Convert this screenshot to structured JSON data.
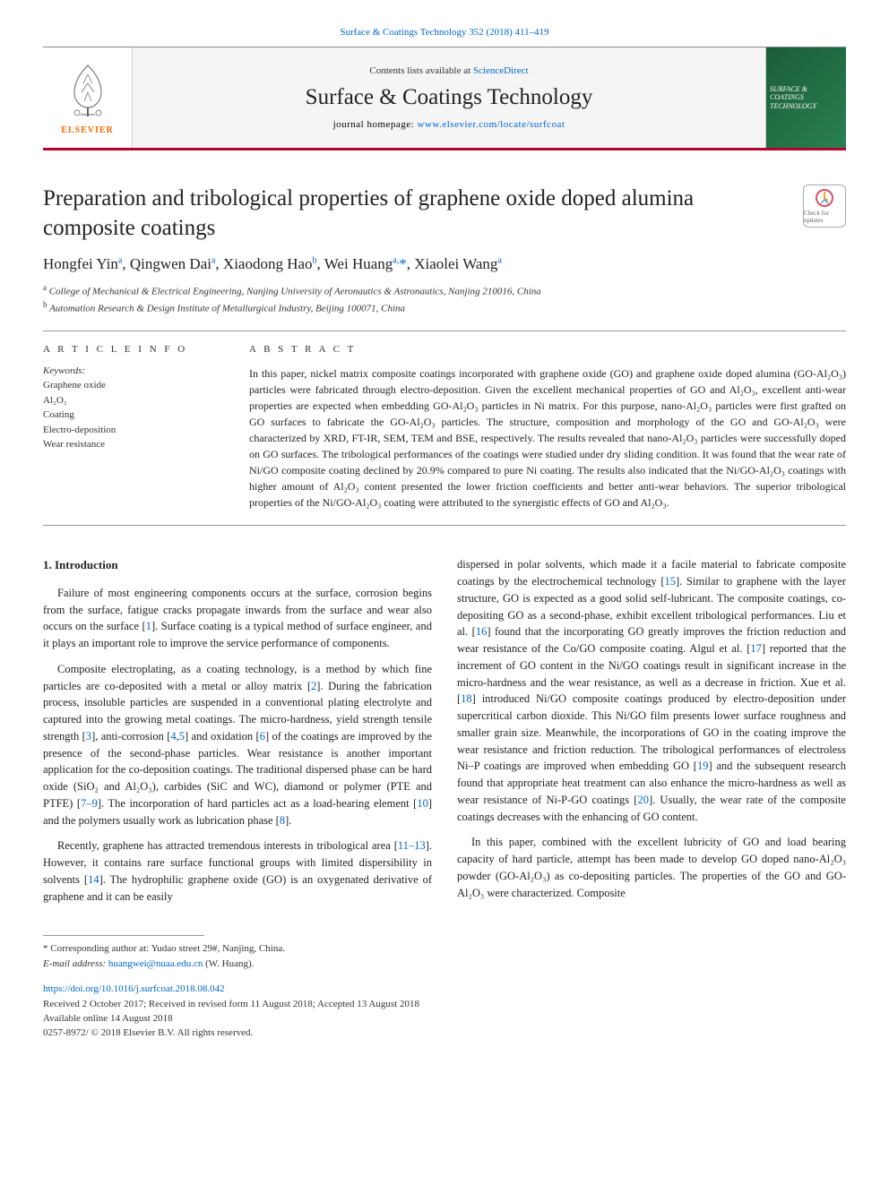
{
  "top_link": {
    "text": "Surface & Coatings Technology 352 (2018) 411–419",
    "href": "#"
  },
  "header": {
    "contents_prefix": "Contents lists available at ",
    "contents_link_text": "ScienceDirect",
    "journal_title": "Surface & Coatings Technology",
    "homepage_prefix": "journal homepage: ",
    "homepage_link_text": "www.elsevier.com/locate/surfcoat",
    "elsevier_label": "ELSEVIER",
    "cover_text": "SURFACE & COATINGS TECHNOLOGY"
  },
  "article": {
    "title": "Preparation and tribological properties of graphene oxide doped alumina composite coatings",
    "check_updates_label": "Check for updates",
    "authors_html": "Hongfei Yin<sup>a</sup>, Qingwen Dai<sup>a</sup>, Xiaodong Hao<sup>b</sup>, Wei Huang<sup>a,</sup><span class='corr'>*</span>, Xiaolei Wang<sup>a</sup>",
    "affiliations": [
      {
        "sup": "a",
        "text": "College of Mechanical & Electrical Engineering, Nanjing University of Aeronautics & Astronautics, Nanjing 210016, China"
      },
      {
        "sup": "b",
        "text": "Automation Research & Design Institute of Metallurgical Industry, Beijing 100071, China"
      }
    ]
  },
  "article_info": {
    "heading": "A R T I C L E  I N F O",
    "keywords_label": "Keywords:",
    "keywords": [
      "Graphene oxide",
      "Al₂O₃",
      "Coating",
      "Electro-deposition",
      "Wear resistance"
    ]
  },
  "abstract": {
    "heading": "A B S T R A C T",
    "text": "In this paper, nickel matrix composite coatings incorporated with graphene oxide (GO) and graphene oxide doped alumina (GO-Al₂O₃) particles were fabricated through electro-deposition. Given the excellent mechanical properties of GO and Al₂O₃, excellent anti-wear properties are expected when embedding GO-Al₂O₃ particles in Ni matrix. For this purpose, nano-Al₂O₃ particles were first grafted on GO surfaces to fabricate the GO-Al₂O₃ particles. The structure, composition and morphology of the GO and GO-Al₂O₃ were characterized by XRD, FT-IR, SEM, TEM and BSE, respectively. The results revealed that nano-Al₂O₃ particles were successfully doped on GO surfaces. The tribological performances of the coatings were studied under dry sliding condition. It was found that the wear rate of Ni/GO composite coating declined by 20.9% compared to pure Ni coating. The results also indicated that the Ni/GO-Al₂O₃ coatings with higher amount of Al₂O₃ content presented the lower friction coefficients and better anti-wear behaviors. The superior tribological properties of the Ni/GO-Al₂O₃ coating were attributed to the synergistic effects of GO and Al₂O₃."
  },
  "body": {
    "intro_heading": "1. Introduction",
    "col1": [
      "Failure of most engineering components occurs at the surface, corrosion begins from the surface, fatigue cracks propagate inwards from the surface and wear also occurs on the surface [<span class='ref'>1</span>]. Surface coating is a typical method of surface engineer, and it plays an important role to improve the service performance of components.",
      "Composite electroplating, as a coating technology, is a method by which fine particles are co-deposited with a metal or alloy matrix [<span class='ref'>2</span>]. During the fabrication process, insoluble particles are suspended in a conventional plating electrolyte and captured into the growing metal coatings. The micro-hardness, yield strength tensile strength [<span class='ref'>3</span>], anti-corrosion [<span class='ref'>4</span>,<span class='ref'>5</span>] and oxidation [<span class='ref'>6</span>] of the coatings are improved by the presence of the second-phase particles. Wear resistance is another important application for the co-deposition coatings. The traditional dispersed phase can be hard oxide (SiO₂ and Al₂O₃), carbides (SiC and WC), diamond or polymer (PTE and PTFE) [<span class='ref'>7–9</span>]. The incorporation of hard particles act as a load-bearing element [<span class='ref'>10</span>] and the polymers usually work as lubrication phase [<span class='ref'>8</span>].",
      "Recently, graphene has attracted tremendous interests in tribological area [<span class='ref'>11–13</span>]. However, it contains rare surface functional groups with limited dispersibility in solvents [<span class='ref'>14</span>]. The hydrophilic graphene oxide (GO) is an oxygenated derivative of graphene and it can be easily"
    ],
    "col2": [
      "dispersed in polar solvents, which made it a facile material to fabricate composite coatings by the electrochemical technology [<span class='ref'>15</span>]. Similar to graphene with the layer structure, GO is expected as a good solid self-lubricant. The composite coatings, co-depositing GO as a second-phase, exhibit excellent tribological performances. Liu et al. [<span class='ref'>16</span>] found that the incorporating GO greatly improves the friction reduction and wear resistance of the Co/GO composite coating. Algul et al. [<span class='ref'>17</span>] reported that the increment of GO content in the Ni/GO coatings result in significant increase in the micro-hardness and the wear resistance, as well as a decrease in friction. Xue et al. [<span class='ref'>18</span>] introduced Ni/GO composite coatings produced by electro-deposition under supercritical carbon dioxide. This Ni/GO film presents lower surface roughness and smaller grain size. Meanwhile, the incorporations of GO in the coating improve the wear resistance and friction reduction. The tribological performances of electroless Ni–P coatings are improved when embedding GO [<span class='ref'>19</span>] and the subsequent research found that appropriate heat treatment can also enhance the micro-hardness as well as wear resistance of Ni-P-GO coatings [<span class='ref'>20</span>]. Usually, the wear rate of the composite coatings decreases with the enhancing of GO content.",
      "In this paper, combined with the excellent lubricity of GO and load bearing capacity of hard particle, attempt has been made to develop GO doped nano-Al₂O₃ powder (GO-Al₂O₃) as co-depositing particles. The properties of the GO and GO-Al₂O₃ were characterized. Composite"
    ]
  },
  "footer": {
    "corr_line": "* Corresponding author at: Yudao street 29#, Nanjing, China.",
    "email_label": "E-mail address: ",
    "email": "huangwei@nuaa.edu.cn",
    "email_suffix": " (W. Huang).",
    "doi": "https://doi.org/10.1016/j.surfcoat.2018.08.042",
    "received": "Received 2 October 2017; Received in revised form 11 August 2018; Accepted 13 August 2018",
    "available": "Available online 14 August 2018",
    "copyright": "0257-8972/ © 2018 Elsevier B.V. All rights reserved."
  },
  "colors": {
    "link": "#0066cc",
    "accent_border": "#b8002e",
    "elsevier_orange": "#ff6600",
    "cover_bg_start": "#1a5c3a",
    "cover_bg_end": "#2a8050"
  }
}
